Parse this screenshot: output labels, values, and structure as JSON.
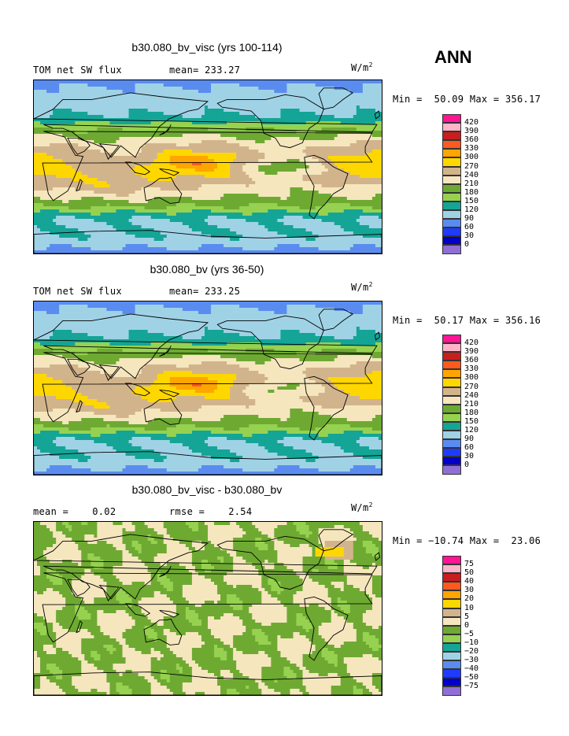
{
  "season_label": "ANN",
  "colors": {
    "abs_scale": [
      "#8f6fd6",
      "#0000c8",
      "#1e3cff",
      "#5a8cf0",
      "#a0d2e6",
      "#14a596",
      "#96d250",
      "#6eaa32",
      "#f5e6be",
      "#d2b48c",
      "#ffd700",
      "#ffa500",
      "#ff5a1e",
      "#c81e1e",
      "#ffb4c8",
      "#ff1493"
    ],
    "diff_scale": [
      "#8f6fd6",
      "#0000c8",
      "#1e3cff",
      "#5a8cf0",
      "#a0d2e6",
      "#14a596",
      "#96d250",
      "#6eaa32",
      "#f5e6be",
      "#d2b48c",
      "#ffd700",
      "#ffa500",
      "#ff5a1e",
      "#c81e1e",
      "#ffb4c8",
      "#ff1493"
    ]
  },
  "panels": [
    {
      "title": "b30.080_bv_visc (yrs 100-114)",
      "left_label": "TOM net SW flux",
      "right_label": "mean= 233.27",
      "units": "W/m",
      "units_sup": "2",
      "minmax": "Min =  50.09 Max = 356.17",
      "legend_labels": [
        "420",
        "390",
        "360",
        "330",
        "300",
        "270",
        "240",
        "210",
        "180",
        "150",
        "120",
        "90",
        "60",
        "30",
        "0"
      ],
      "field_type": "abs"
    },
    {
      "title": "b30.080_bv (yrs 36-50)",
      "left_label": "TOM net SW flux",
      "right_label": "mean= 233.25",
      "units": "W/m",
      "units_sup": "2",
      "minmax": "Min =  50.17 Max = 356.16",
      "legend_labels": [
        "420",
        "390",
        "360",
        "330",
        "300",
        "270",
        "240",
        "210",
        "180",
        "150",
        "120",
        "90",
        "60",
        "30",
        "0"
      ],
      "field_type": "abs"
    },
    {
      "title": "b30.080_bv_visc - b30.080_bv",
      "left_label": "mean =    0.02",
      "right_label": "rmse =    2.54",
      "units": "W/m",
      "units_sup": "2",
      "minmax": "Min = −10.74 Max =  23.06",
      "legend_labels": [
        "75",
        "50",
        "40",
        "30",
        "20",
        "10",
        "5",
        "0",
        "−5",
        "−10",
        "−20",
        "−30",
        "−40",
        "−50",
        "−75"
      ],
      "field_type": "diff"
    }
  ]
}
